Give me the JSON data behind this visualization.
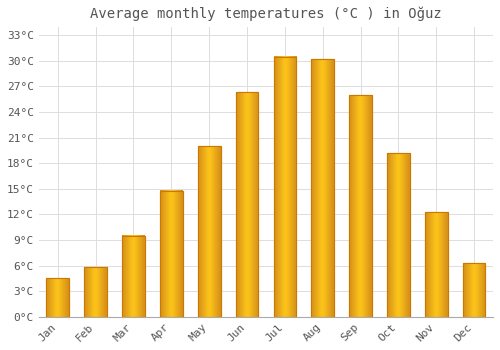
{
  "title": "Average monthly temperatures (°C ) in Oğuz",
  "months": [
    "Jan",
    "Feb",
    "Mar",
    "Apr",
    "May",
    "Jun",
    "Jul",
    "Aug",
    "Sep",
    "Oct",
    "Nov",
    "Dec"
  ],
  "temperatures": [
    4.5,
    5.8,
    9.5,
    14.8,
    20.0,
    26.3,
    30.5,
    30.2,
    26.0,
    19.2,
    12.3,
    6.3
  ],
  "bar_color": "#FFB300",
  "bar_edge_color": "#E65100",
  "background_color": "#FFFFFF",
  "grid_color": "#DDDDDD",
  "text_color": "#555555",
  "ylim": [
    0,
    34
  ],
  "yticks": [
    0,
    3,
    6,
    9,
    12,
    15,
    18,
    21,
    24,
    27,
    30,
    33
  ],
  "title_fontsize": 10,
  "tick_fontsize": 8,
  "font_family": "monospace"
}
